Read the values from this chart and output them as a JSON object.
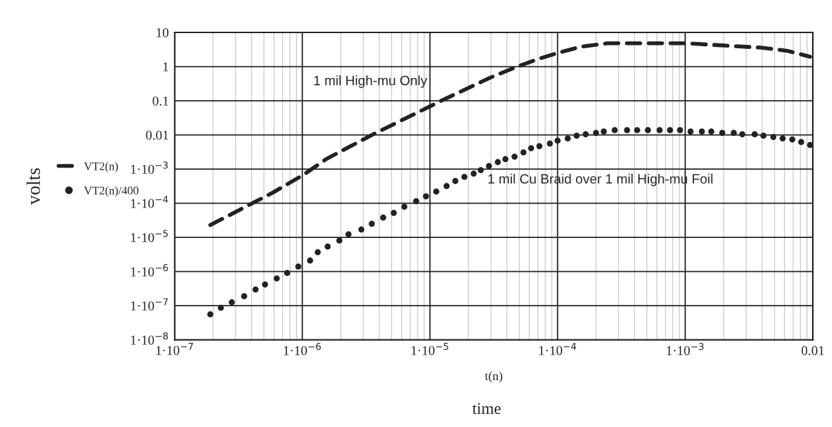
{
  "chart_data": {
    "type": "line",
    "xlabel": "t(n)",
    "ylabel": "volts",
    "log": "xy",
    "grid": true,
    "legend": "left",
    "xlim": [
      1e-07,
      0.01
    ],
    "ylim": [
      1e-08,
      10
    ],
    "xticks": [
      {
        "value": 1e-07,
        "label": "1·10$^{−7}$"
      },
      {
        "value": 1e-06,
        "label": "1·10$^{−6}$"
      },
      {
        "value": 1e-05,
        "label": "1·10$^{−5}$"
      },
      {
        "value": 0.0001,
        "label": "1·10$^{−4}$"
      },
      {
        "value": 0.001,
        "label": "1·10$^{−3}$"
      },
      0.01
    ],
    "yticks": [
      {
        "value": 1e-08,
        "label": "1·10$^{−8}$"
      },
      {
        "value": 1e-07,
        "label": "1·10$^{−7}$"
      },
      {
        "value": 1e-06,
        "label": "1·10$^{−6}$"
      },
      {
        "value": 1e-05,
        "label": "1·10$^{−5}$"
      },
      {
        "value": 0.0001,
        "label": "1·10$^{−4}$"
      },
      {
        "value": 0.001,
        "label": "1·10$^{−3}$"
      },
      0.01,
      0.1,
      1,
      10
    ],
    "annotations": [
      "1 mil High-mu Only",
      "1 mil Cu Braid over 1 mil High-mu Foil",
      "time"
    ],
    "series": [
      {
        "name": "VT2(n)",
        "color": "#222222",
        "line_style": "dashed",
        "marker": "none",
        "x": [
          1.9e-07,
          5.8e-07,
          1.02e-06,
          1.55e-06,
          3.6e-06,
          9.8e-06,
          1.29e-05,
          2.95e-05,
          4.6e-05,
          6.8e-05,
          0.0001,
          0.000151,
          0.000245,
          0.00047,
          0.00105,
          0.00235,
          0.0039,
          0.0063,
          0.0095
        ],
        "values": [
          2.3e-05,
          0.0002,
          0.00068,
          0.002,
          0.0105,
          0.066,
          0.11,
          0.47,
          0.93,
          1.6,
          2.5,
          3.8,
          4.8,
          4.8,
          4.8,
          4.0,
          3.6,
          2.9,
          1.95
        ]
      },
      {
        "name": "VT2(n)/400",
        "color": "#222222",
        "type": "scatter",
        "marker": "circle",
        "x": [
          1.9e-07,
          2.3e-07,
          2.8e-07,
          3.5e-07,
          4.3e-07,
          5.1e-07,
          6.3e-07,
          7.6e-07,
          9.3e-07,
          1.15e-06,
          1.32e-06,
          1.58e-06,
          1.95e-06,
          2.3e-06,
          2.9e-06,
          3.5e-06,
          4.3e-06,
          5.2e-06,
          6.3e-06,
          7.8e-06,
          9.3e-06,
          1.12e-05,
          1.35e-05,
          1.58e-05,
          1.86e-05,
          2.2e-05,
          2.5e-05,
          2.9e-05,
          3.4e-05,
          3.9e-05,
          4.6e-05,
          5.4e-05,
          6.2e-05,
          7.2e-05,
          8.7e-05,
          0.0001,
          0.00012,
          0.000141,
          0.000166,
          0.0002,
          0.00023,
          0.00028,
          0.00035,
          0.00042,
          0.00051,
          0.00063,
          0.00076,
          0.00091,
          0.0011,
          0.00135,
          0.0016,
          0.00195,
          0.0024,
          0.0028,
          0.0035,
          0.0041,
          0.0049,
          0.0058,
          0.0069,
          0.0081,
          0.0095
        ],
        "values": [
          5.6e-08,
          8.7e-08,
          1.26e-07,
          1.9e-07,
          3e-07,
          4.2e-07,
          6.3e-07,
          9.1e-07,
          1.4e-06,
          2.1e-06,
          3.7e-06,
          5.4e-06,
          8.1e-06,
          1.23e-05,
          1.7e-05,
          2.5e-05,
          3.8e-05,
          5.2e-05,
          7.9e-05,
          0.000115,
          0.00016,
          0.00022,
          0.00032,
          0.00045,
          0.00059,
          0.00074,
          0.00093,
          0.00123,
          0.0016,
          0.00195,
          0.0023,
          0.0031,
          0.0041,
          0.0047,
          0.0056,
          0.0068,
          0.0079,
          0.0095,
          0.0105,
          0.0115,
          0.0126,
          0.0138,
          0.0138,
          0.0138,
          0.0138,
          0.0138,
          0.0138,
          0.0138,
          0.0126,
          0.0126,
          0.0126,
          0.0115,
          0.0115,
          0.0105,
          0.0105,
          0.0095,
          0.0087,
          0.0079,
          0.0074,
          0.0062,
          0.0051
        ]
      }
    ]
  }
}
